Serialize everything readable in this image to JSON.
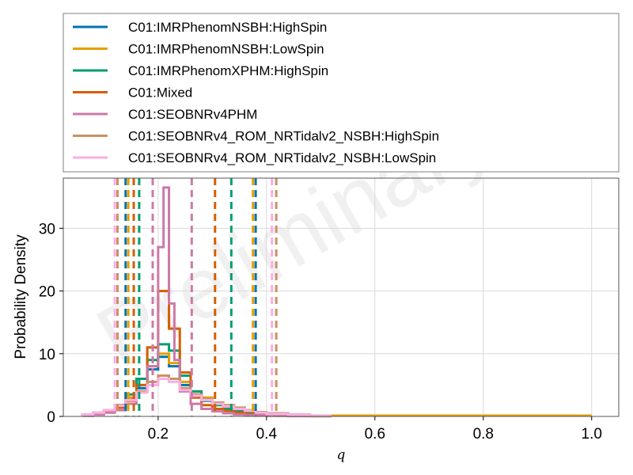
{
  "chart_data": {
    "type": "line",
    "xlabel": "q",
    "ylabel": "Probability Density",
    "xlim": [
      0.025,
      1.05
    ],
    "ylim": [
      0,
      38
    ],
    "xticks": [
      0.2,
      0.4,
      0.6,
      0.8,
      1.0
    ],
    "xtick_labels": [
      "0.2",
      "0.4",
      "0.6",
      "0.8",
      "1.0"
    ],
    "yticks": [
      0,
      10,
      20,
      30
    ],
    "ytick_labels": [
      "0",
      "10",
      "20",
      "30"
    ],
    "grid": true,
    "legend_position": "top (outside, above plot)",
    "watermark": "Preliminary",
    "series": [
      {
        "name": "C01:IMRPhenomNSBH:HighSpin",
        "color": "#0072b2",
        "histogram": {
          "edges": [
            0.06,
            0.08,
            0.1,
            0.12,
            0.14,
            0.16,
            0.18,
            0.2,
            0.22,
            0.24,
            0.26,
            0.28,
            0.3,
            0.32,
            0.34,
            0.36,
            0.38,
            0.4,
            0.44,
            0.48,
            0.52
          ],
          "density": [
            0.3,
            0.5,
            0.8,
            1.5,
            2.8,
            4.5,
            7.5,
            9.5,
            8.0,
            5.0,
            3.5,
            2.5,
            2.0,
            1.5,
            1.0,
            0.7,
            0.4,
            0.3,
            0.2,
            0.1
          ]
        },
        "interval_lines": [
          0.14,
          0.38
        ]
      },
      {
        "name": "C01:IMRPhenomNSBH:LowSpin",
        "color": "#e69f00",
        "histogram": {
          "edges": [
            0.06,
            0.08,
            0.1,
            0.12,
            0.14,
            0.16,
            0.18,
            0.2,
            0.22,
            0.24,
            0.26,
            0.28,
            0.3,
            0.32,
            0.34,
            0.36,
            0.38,
            0.4,
            0.44,
            0.48,
            0.52
          ],
          "density": [
            0.3,
            0.5,
            0.9,
            1.6,
            3.0,
            5.0,
            8.0,
            10.0,
            8.5,
            5.5,
            4.0,
            3.0,
            2.2,
            1.6,
            1.1,
            0.8,
            0.5,
            0.3,
            0.2,
            0.1
          ]
        },
        "interval_lines": [
          0.145,
          0.375
        ]
      },
      {
        "name": "C01:IMRPhenomXPHM:HighSpin",
        "color": "#009e73",
        "histogram": {
          "edges": [
            0.06,
            0.08,
            0.1,
            0.12,
            0.14,
            0.16,
            0.18,
            0.2,
            0.22,
            0.24,
            0.26,
            0.28,
            0.3,
            0.32,
            0.34,
            0.36,
            0.38,
            0.4,
            0.44,
            0.48,
            0.52
          ],
          "density": [
            0.2,
            0.4,
            0.8,
            1.8,
            3.5,
            6.0,
            9.0,
            11.5,
            10.5,
            6.5,
            4.0,
            2.5,
            1.8,
            1.2,
            0.8,
            0.5,
            0.3,
            0.2,
            0.1,
            0.05
          ]
        },
        "interval_lines": [
          0.165,
          0.335
        ]
      },
      {
        "name": "C01:Mixed",
        "color": "#d55e00",
        "histogram": {
          "edges": [
            0.06,
            0.08,
            0.1,
            0.12,
            0.14,
            0.16,
            0.18,
            0.2,
            0.22,
            0.24,
            0.26,
            0.28,
            0.3,
            0.32,
            0.34,
            0.36,
            0.38,
            0.4,
            0.44,
            0.48,
            0.52
          ],
          "density": [
            0.2,
            0.4,
            0.8,
            1.4,
            2.5,
            5.0,
            11.0,
            20.0,
            14.0,
            7.0,
            3.0,
            1.8,
            1.2,
            0.9,
            0.6,
            0.4,
            0.3,
            0.2,
            0.1,
            0.05
          ]
        },
        "interval_lines": [
          0.155,
          0.305
        ]
      },
      {
        "name": "C01:SEOBNRv4PHM",
        "color": "#cc79a7",
        "histogram": {
          "edges": [
            0.06,
            0.08,
            0.1,
            0.12,
            0.14,
            0.16,
            0.18,
            0.2,
            0.21,
            0.22,
            0.23,
            0.24,
            0.26,
            0.28,
            0.3,
            0.32,
            0.34,
            0.36,
            0.4,
            0.44,
            0.48
          ],
          "density": [
            0.1,
            0.3,
            0.6,
            1.0,
            2.0,
            4.0,
            8.0,
            27.0,
            36.5,
            18.0,
            9.0,
            4.0,
            2.0,
            1.2,
            0.8,
            0.5,
            0.3,
            0.2,
            0.1,
            0.05
          ]
        },
        "interval_lines": [
          0.19,
          0.262
        ]
      },
      {
        "name": "C01:SEOBNRv4_ROM_NRTidalv2_NSBH:HighSpin",
        "color": "#ca9161",
        "histogram": {
          "edges": [
            0.06,
            0.08,
            0.1,
            0.12,
            0.14,
            0.16,
            0.18,
            0.2,
            0.22,
            0.24,
            0.26,
            0.28,
            0.3,
            0.32,
            0.34,
            0.36,
            0.38,
            0.4,
            0.44,
            0.48,
            0.52
          ],
          "density": [
            0.3,
            0.6,
            1.0,
            1.8,
            2.8,
            4.0,
            5.5,
            6.5,
            6.0,
            4.5,
            3.5,
            2.8,
            2.2,
            1.8,
            1.4,
            1.0,
            0.7,
            0.5,
            0.3,
            0.1
          ]
        },
        "interval_lines": [
          0.125,
          0.418
        ]
      },
      {
        "name": "C01:SEOBNRv4_ROM_NRTidalv2_NSBH:LowSpin",
        "color": "#fbafe4",
        "histogram": {
          "edges": [
            0.06,
            0.08,
            0.1,
            0.12,
            0.14,
            0.16,
            0.18,
            0.2,
            0.22,
            0.24,
            0.26,
            0.28,
            0.3,
            0.32,
            0.34,
            0.36,
            0.38,
            0.4,
            0.44,
            0.48,
            0.52
          ],
          "density": [
            0.3,
            0.6,
            1.0,
            1.7,
            2.6,
            3.8,
            5.0,
            6.0,
            5.5,
            4.2,
            3.3,
            2.6,
            2.0,
            1.6,
            1.2,
            0.9,
            0.6,
            0.4,
            0.25,
            0.1
          ]
        },
        "interval_lines": [
          0.12,
          0.41
        ]
      }
    ]
  }
}
